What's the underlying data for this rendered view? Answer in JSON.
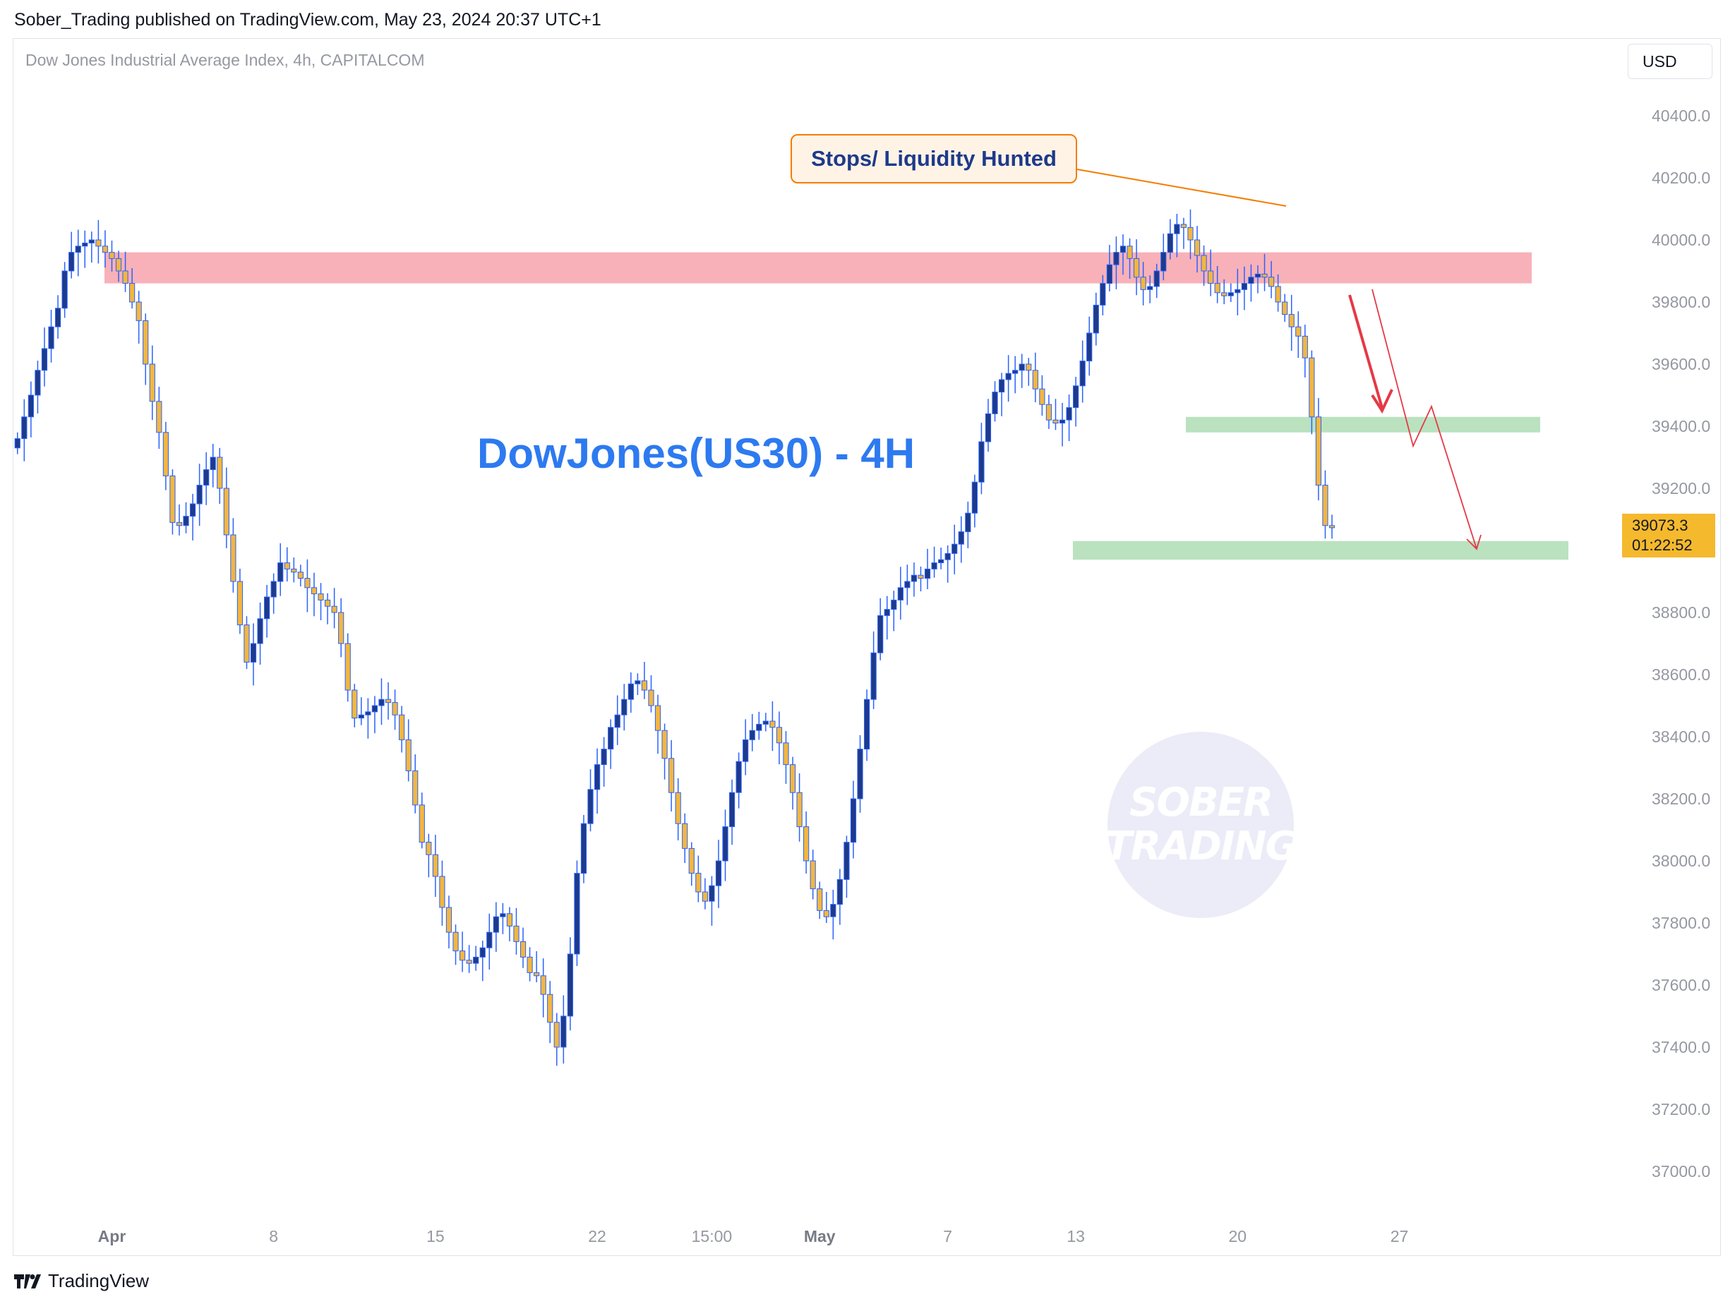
{
  "header": {
    "published": "Sober_Trading published on TradingView.com, May 23, 2024 20:37 UTC+1"
  },
  "chart_header": {
    "symbol_line": "Dow Jones Industrial Average Index, 4h, CAPITALCOM",
    "currency": "USD"
  },
  "footer": {
    "brand": "TradingView"
  },
  "annotations": {
    "callout": "Stops/ Liquidity Hunted",
    "overlay_title": "DowJones(US30) - 4H",
    "watermark_line1": "SOBER",
    "watermark_line2": "TRADING"
  },
  "price_tag": {
    "price": "39073.3",
    "countdown": "01:22:52"
  },
  "colors": {
    "up_body": "#1e3a8a",
    "down_body": "#f2b640",
    "wick": "#2962ff",
    "supply_zone": "#f7a8b0",
    "demand_zone": "#b3dfb8",
    "arrow": "#e53946",
    "callout_border": "#f57c00"
  },
  "chart_data": {
    "type": "candlestick",
    "title": "DowJones(US30) - 4H",
    "xlabel": "",
    "ylabel": "",
    "ylim": [
      36800,
      40600
    ],
    "y_ticks": [
      "40400.0",
      "40200.0",
      "40000.0",
      "39800.0",
      "39600.0",
      "39400.0",
      "39200.0",
      "39000.0",
      "38800.0",
      "38600.0",
      "38400.0",
      "38200.0",
      "38000.0",
      "37800.0",
      "37600.0",
      "37400.0",
      "37200.0",
      "37000.0"
    ],
    "x_ticks": [
      {
        "bar": 14,
        "label": "Apr",
        "bold": true
      },
      {
        "bar": 38,
        "label": "8",
        "bold": false
      },
      {
        "bar": 62,
        "label": "15",
        "bold": false
      },
      {
        "bar": 86,
        "label": "22",
        "bold": false
      },
      {
        "bar": 103,
        "label": "15:00",
        "bold": false
      },
      {
        "bar": 119,
        "label": "May",
        "bold": true
      },
      {
        "bar": 138,
        "label": "7",
        "bold": false
      },
      {
        "bar": 157,
        "label": "13",
        "bold": false
      },
      {
        "bar": 181,
        "label": "20",
        "bold": false
      },
      {
        "bar": 205,
        "label": "27",
        "bold": false
      }
    ],
    "bar_count": 213,
    "closes": [
      39360,
      39430,
      39500,
      39580,
      39650,
      39720,
      39780,
      39900,
      39960,
      39980,
      39990,
      40000,
      39980,
      39960,
      39940,
      39900,
      39860,
      39800,
      39740,
      39600,
      39480,
      39380,
      39240,
      39090,
      39080,
      39110,
      39150,
      39210,
      39260,
      39300,
      39200,
      39050,
      38900,
      38760,
      38640,
      38700,
      38780,
      38850,
      38900,
      38960,
      38940,
      38930,
      38910,
      38880,
      38860,
      38840,
      38820,
      38800,
      38700,
      38550,
      38460,
      38470,
      38480,
      38500,
      38520,
      38510,
      38470,
      38390,
      38290,
      38180,
      38060,
      38020,
      37950,
      37850,
      37770,
      37710,
      37680,
      37670,
      37690,
      37720,
      37770,
      37820,
      37830,
      37790,
      37740,
      37690,
      37640,
      37630,
      37570,
      37480,
      37400,
      37500,
      37700,
      37960,
      38120,
      38230,
      38310,
      38360,
      38430,
      38470,
      38520,
      38570,
      38580,
      38550,
      38500,
      38420,
      38330,
      38220,
      38120,
      38040,
      37960,
      37900,
      37870,
      37920,
      38000,
      38110,
      38220,
      38320,
      38390,
      38420,
      38440,
      38450,
      38430,
      38380,
      38310,
      38220,
      38110,
      38000,
      37910,
      37840,
      37820,
      37860,
      37940,
      38060,
      38200,
      38360,
      38520,
      38670,
      38790,
      38810,
      38840,
      38880,
      38900,
      38920,
      38910,
      38940,
      38960,
      38970,
      38990,
      39020,
      39060,
      39120,
      39220,
      39350,
      39440,
      39510,
      39550,
      39570,
      39580,
      39600,
      39580,
      39520,
      39470,
      39420,
      39410,
      39420,
      39460,
      39530,
      39610,
      39700,
      39790,
      39860,
      39920,
      39960,
      39980,
      39940,
      39880,
      39840,
      39850,
      39900,
      39960,
      40020,
      40050,
      40040,
      40000,
      39950,
      39900,
      39860,
      39830,
      39820,
      39830,
      39840,
      39860,
      39880,
      39890,
      39880,
      39850,
      39800,
      39760,
      39720,
      39690,
      39620,
      39430,
      39210,
      39080,
      39073
    ]
  }
}
